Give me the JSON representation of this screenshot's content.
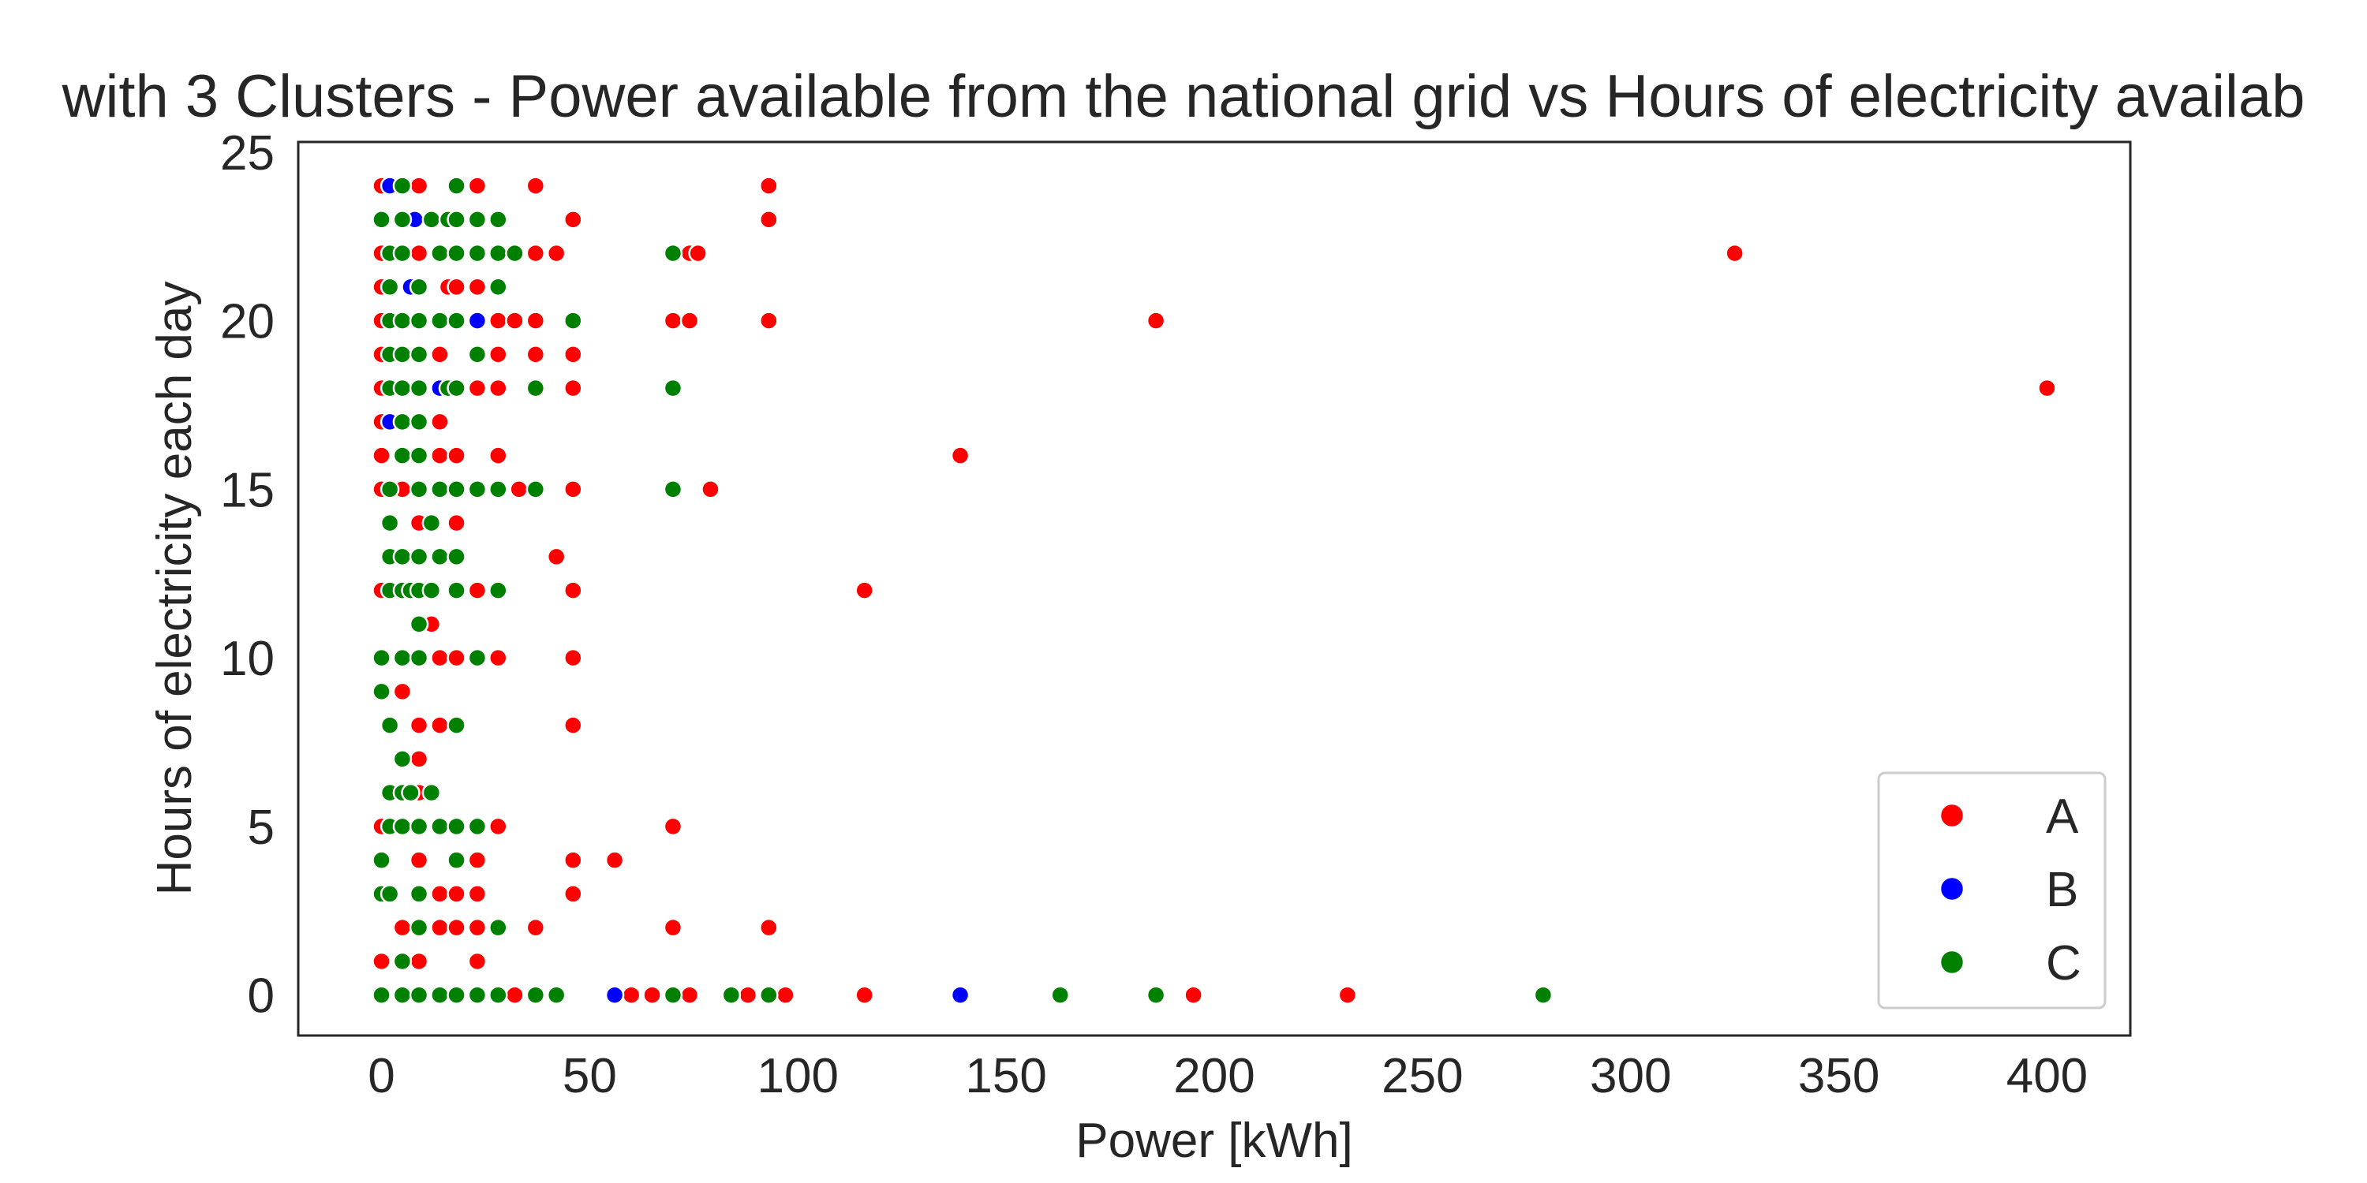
{
  "chart_data": {
    "type": "scatter",
    "title": "with 3 Clusters - Power available from the national grid  vs Hours of electricity availab",
    "xlabel": "Power [kWh]",
    "ylabel": "Hours of electricity each day",
    "xlim": [
      -20,
      420
    ],
    "ylim": [
      -1.2,
      25.3
    ],
    "xticks": [
      0,
      50,
      100,
      150,
      200,
      250,
      300,
      350,
      400
    ],
    "yticks": [
      0,
      5,
      10,
      15,
      20,
      25
    ],
    "grid": false,
    "legend_position": "lower-right",
    "colors": {
      "A": "#ff0000",
      "B": "#0000ff",
      "C": "#008000"
    },
    "legend": [
      {
        "label": "A",
        "color": "#ff0000"
      },
      {
        "label": "B",
        "color": "#0000ff"
      },
      {
        "label": "C",
        "color": "#008000"
      }
    ],
    "series": [
      {
        "name": "A",
        "color": "#ff0000",
        "points": [
          [
            0,
            24
          ],
          [
            9,
            24
          ],
          [
            23,
            24
          ],
          [
            37,
            24
          ],
          [
            93,
            24
          ],
          [
            46,
            23
          ],
          [
            93,
            23
          ],
          [
            0,
            22
          ],
          [
            9,
            22
          ],
          [
            37,
            22
          ],
          [
            42,
            22
          ],
          [
            74,
            22
          ],
          [
            76,
            22
          ],
          [
            325,
            22
          ],
          [
            0,
            21
          ],
          [
            16,
            21
          ],
          [
            18,
            21
          ],
          [
            23,
            21
          ],
          [
            0,
            20
          ],
          [
            28,
            20
          ],
          [
            32,
            20
          ],
          [
            37,
            20
          ],
          [
            70,
            20
          ],
          [
            74,
            20
          ],
          [
            93,
            20
          ],
          [
            186,
            20
          ],
          [
            0,
            19
          ],
          [
            14,
            19
          ],
          [
            28,
            19
          ],
          [
            37,
            19
          ],
          [
            46,
            19
          ],
          [
            0,
            18
          ],
          [
            23,
            18
          ],
          [
            28,
            18
          ],
          [
            46,
            18
          ],
          [
            400,
            18
          ],
          [
            0,
            17
          ],
          [
            14,
            17
          ],
          [
            0,
            16
          ],
          [
            14,
            16
          ],
          [
            18,
            16
          ],
          [
            28,
            16
          ],
          [
            139,
            16
          ],
          [
            0,
            15
          ],
          [
            5,
            15
          ],
          [
            33,
            15
          ],
          [
            46,
            15
          ],
          [
            79,
            15
          ],
          [
            9,
            14
          ],
          [
            18,
            14
          ],
          [
            42,
            13
          ],
          [
            0,
            12
          ],
          [
            23,
            12
          ],
          [
            46,
            12
          ],
          [
            116,
            12
          ],
          [
            12,
            11
          ],
          [
            14,
            10
          ],
          [
            18,
            10
          ],
          [
            28,
            10
          ],
          [
            46,
            10
          ],
          [
            5,
            9
          ],
          [
            9,
            8
          ],
          [
            14,
            8
          ],
          [
            46,
            8
          ],
          [
            9,
            7
          ],
          [
            9,
            6
          ],
          [
            0,
            5
          ],
          [
            28,
            5
          ],
          [
            70,
            5
          ],
          [
            9,
            4
          ],
          [
            23,
            4
          ],
          [
            46,
            4
          ],
          [
            56,
            4
          ],
          [
            14,
            3
          ],
          [
            18,
            3
          ],
          [
            23,
            3
          ],
          [
            46,
            3
          ],
          [
            5,
            2
          ],
          [
            14,
            2
          ],
          [
            18,
            2
          ],
          [
            23,
            2
          ],
          [
            37,
            2
          ],
          [
            70,
            2
          ],
          [
            93,
            2
          ],
          [
            0,
            1
          ],
          [
            9,
            1
          ],
          [
            23,
            1
          ],
          [
            32,
            0
          ],
          [
            60,
            0
          ],
          [
            65,
            0
          ],
          [
            74,
            0
          ],
          [
            88,
            0
          ],
          [
            97,
            0
          ],
          [
            116,
            0
          ],
          [
            195,
            0
          ],
          [
            232,
            0
          ]
        ]
      },
      {
        "name": "B",
        "color": "#0000ff",
        "points": [
          [
            2,
            24
          ],
          [
            8,
            23
          ],
          [
            7,
            21
          ],
          [
            23,
            20
          ],
          [
            14,
            18
          ],
          [
            2,
            17
          ],
          [
            56,
            0
          ],
          [
            139,
            0
          ]
        ]
      },
      {
        "name": "C",
        "color": "#008000",
        "points": [
          [
            5,
            24
          ],
          [
            18,
            24
          ],
          [
            0,
            23
          ],
          [
            5,
            23
          ],
          [
            12,
            23
          ],
          [
            16,
            23
          ],
          [
            18,
            23
          ],
          [
            23,
            23
          ],
          [
            28,
            23
          ],
          [
            2,
            22
          ],
          [
            5,
            22
          ],
          [
            14,
            22
          ],
          [
            18,
            22
          ],
          [
            23,
            22
          ],
          [
            28,
            22
          ],
          [
            32,
            22
          ],
          [
            70,
            22
          ],
          [
            2,
            21
          ],
          [
            9,
            21
          ],
          [
            28,
            21
          ],
          [
            2,
            20
          ],
          [
            5,
            20
          ],
          [
            9,
            20
          ],
          [
            14,
            20
          ],
          [
            18,
            20
          ],
          [
            46,
            20
          ],
          [
            2,
            19
          ],
          [
            5,
            19
          ],
          [
            9,
            19
          ],
          [
            23,
            19
          ],
          [
            2,
            18
          ],
          [
            5,
            18
          ],
          [
            9,
            18
          ],
          [
            16,
            18
          ],
          [
            18,
            18
          ],
          [
            37,
            18
          ],
          [
            70,
            18
          ],
          [
            5,
            17
          ],
          [
            9,
            17
          ],
          [
            5,
            16
          ],
          [
            9,
            16
          ],
          [
            2,
            15
          ],
          [
            9,
            15
          ],
          [
            14,
            15
          ],
          [
            18,
            15
          ],
          [
            23,
            15
          ],
          [
            28,
            15
          ],
          [
            37,
            15
          ],
          [
            70,
            15
          ],
          [
            2,
            14
          ],
          [
            12,
            14
          ],
          [
            2,
            13
          ],
          [
            5,
            13
          ],
          [
            9,
            13
          ],
          [
            14,
            13
          ],
          [
            18,
            13
          ],
          [
            2,
            12
          ],
          [
            5,
            12
          ],
          [
            7,
            12
          ],
          [
            9,
            12
          ],
          [
            12,
            12
          ],
          [
            18,
            12
          ],
          [
            28,
            12
          ],
          [
            9,
            11
          ],
          [
            0,
            10
          ],
          [
            5,
            10
          ],
          [
            9,
            10
          ],
          [
            23,
            10
          ],
          [
            0,
            9
          ],
          [
            2,
            8
          ],
          [
            18,
            8
          ],
          [
            5,
            7
          ],
          [
            2,
            6
          ],
          [
            5,
            6
          ],
          [
            7,
            6
          ],
          [
            12,
            6
          ],
          [
            2,
            5
          ],
          [
            5,
            5
          ],
          [
            9,
            5
          ],
          [
            14,
            5
          ],
          [
            18,
            5
          ],
          [
            23,
            5
          ],
          [
            0,
            4
          ],
          [
            18,
            4
          ],
          [
            0,
            3
          ],
          [
            2,
            3
          ],
          [
            9,
            3
          ],
          [
            9,
            2
          ],
          [
            28,
            2
          ],
          [
            5,
            1
          ],
          [
            0,
            0
          ],
          [
            5,
            0
          ],
          [
            9,
            0
          ],
          [
            14,
            0
          ],
          [
            18,
            0
          ],
          [
            23,
            0
          ],
          [
            28,
            0
          ],
          [
            37,
            0
          ],
          [
            42,
            0
          ],
          [
            70,
            0
          ],
          [
            84,
            0
          ],
          [
            93,
            0
          ],
          [
            163,
            0
          ],
          [
            186,
            0
          ],
          [
            279,
            0
          ]
        ]
      }
    ]
  }
}
